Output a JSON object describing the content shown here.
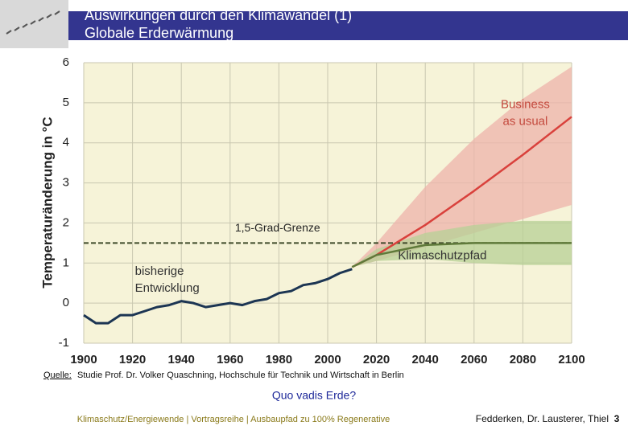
{
  "header": {
    "title_lines": [
      "Auswirkungen durch den Klimawandel (1)",
      "Globale Erderwärmung"
    ]
  },
  "chart_data": {
    "type": "line",
    "ylabel": "Temperaturänderung in °C",
    "xlim": [
      1900,
      2100
    ],
    "xticks": [
      1900,
      1920,
      1940,
      1960,
      1980,
      2000,
      2020,
      2040,
      2060,
      2080,
      2100
    ],
    "ylim": [
      -1,
      6
    ],
    "yticks": [
      -1,
      0,
      1,
      2,
      3,
      4,
      5,
      6
    ],
    "grid": true,
    "reference_line": {
      "value": 1.5,
      "label": "1,5-Grad-Grenze",
      "color": "#3f4a2a"
    },
    "series": [
      {
        "name": [
          "bisherige",
          "Entwicklung"
        ],
        "color": "#1c3553",
        "x": [
          1900,
          1905,
          1910,
          1915,
          1920,
          1925,
          1930,
          1935,
          1940,
          1945,
          1950,
          1955,
          1960,
          1965,
          1970,
          1975,
          1980,
          1985,
          1990,
          1995,
          2000,
          2005,
          2010
        ],
        "values": [
          -0.3,
          -0.5,
          -0.5,
          -0.3,
          -0.3,
          -0.2,
          -0.1,
          -0.05,
          0.05,
          0,
          -0.1,
          -0.05,
          0,
          -0.05,
          0.05,
          0.1,
          0.25,
          0.3,
          0.45,
          0.5,
          0.6,
          0.75,
          0.85
        ]
      },
      {
        "name": [
          "Business",
          "as usual"
        ],
        "color": "#d9413c",
        "band_color": "#eeb3ab",
        "x": [
          2010,
          2020,
          2040,
          2060,
          2080,
          2100
        ],
        "values": [
          0.9,
          1.2,
          1.95,
          2.8,
          3.7,
          4.65
        ],
        "lower": [
          0.9,
          1.05,
          1.4,
          1.75,
          2.1,
          2.45
        ],
        "upper": [
          0.9,
          1.5,
          2.9,
          4.1,
          5.1,
          5.9
        ]
      },
      {
        "name": [
          "Klimaschutzpfad"
        ],
        "color": "#5f7a3a",
        "band_color": "#b7d096",
        "x": [
          2010,
          2020,
          2040,
          2060,
          2080,
          2100
        ],
        "values": [
          0.9,
          1.2,
          1.45,
          1.5,
          1.5,
          1.5
        ],
        "lower": [
          0.9,
          1.05,
          1.1,
          1.0,
          0.95,
          0.95
        ],
        "upper": [
          0.9,
          1.35,
          1.75,
          1.95,
          2.05,
          2.05
        ]
      }
    ]
  },
  "source": {
    "label": "Quelle:",
    "text": "Studie Prof. Dr. Volker Quaschning, Hochschule für Technik und Wirtschaft in Berlin"
  },
  "subtitle": "Quo vadis Erde?",
  "footer": {
    "left": "Klimaschutz/Energiewende | Vortragsreihe | Ausbaupfad zu 100% Regenerative",
    "right": "Fedderken, Dr. Lausterer, Thiel",
    "page": "3"
  }
}
